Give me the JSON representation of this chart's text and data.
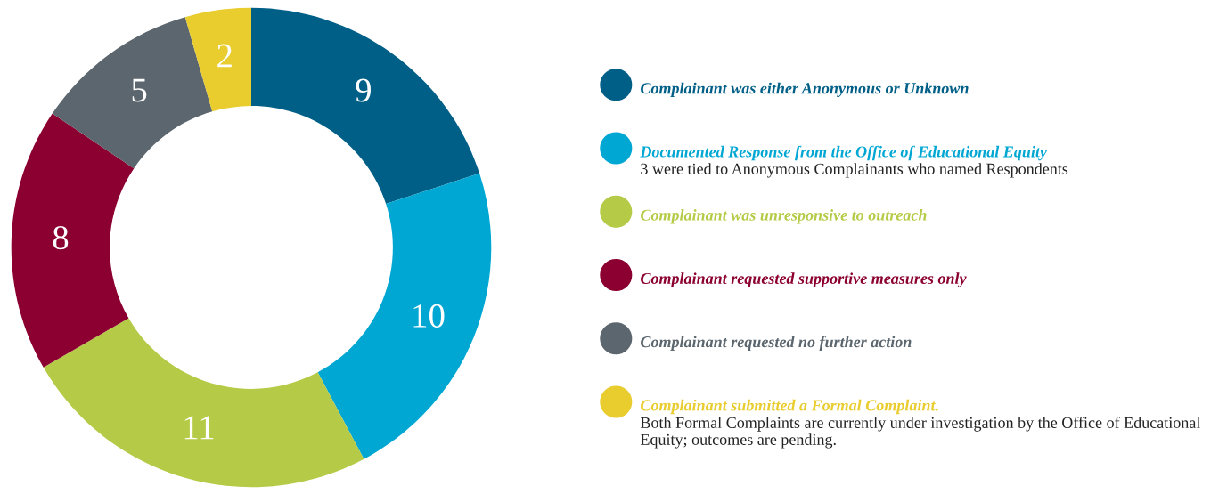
{
  "chart_data": {
    "type": "donut",
    "categories": [
      "Complainant was either Anonymous or Unknown",
      "Documented Response from the Office of Educational Equity",
      "Complainant was unresponsive to outreach",
      "Complainant requested supportive measures only",
      "Complainant requested no further action",
      "Complainant submitted a Formal Complaint."
    ],
    "values": [
      9,
      10,
      11,
      8,
      5,
      2
    ],
    "colors": [
      "#005f87",
      "#00a7d3",
      "#b5cb47",
      "#8b0030",
      "#5b666e",
      "#e9cc2e"
    ],
    "value_labels": [
      "9",
      "10",
      "11",
      "8",
      "5",
      "2"
    ],
    "legend": "right",
    "annotations": [
      "3 were tied to Anonymous Complainants who named Respondents",
      "Both Formal Complaints are currently under investigation by the Office of Educational Equity; outcomes are pending."
    ]
  }
}
